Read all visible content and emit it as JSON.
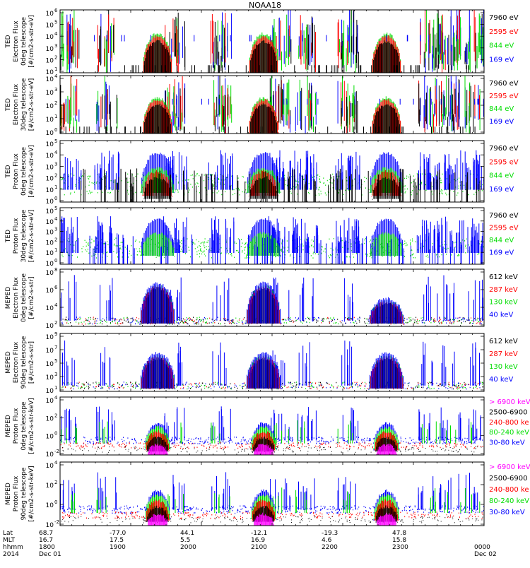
{
  "title": "NOAA18",
  "colors": {
    "black": "#000000",
    "red": "#ff0000",
    "green": "#00dd00",
    "blue": "#0000ff",
    "magenta": "#ff00ff"
  },
  "chart_data": [
    {
      "type": "scatter",
      "ylabel": [
        "TED",
        "Electron Flux",
        "0deg telescope",
        "[#/cm2-s-str-eV]"
      ],
      "yticks": [
        "10",
        "10",
        "10",
        "10",
        "10",
        "10"
      ],
      "yexp": [
        "1",
        "2",
        "3",
        "4",
        "5",
        "6"
      ],
      "legend": [
        {
          "label": "7960 eV",
          "color": "black"
        },
        {
          "label": "2595 eV",
          "color": "red"
        },
        {
          "label": "844 eV",
          "color": "green"
        },
        {
          "label": "169 eV",
          "color": "blue"
        }
      ],
      "style": "ted_e"
    },
    {
      "type": "scatter",
      "ylabel": [
        "TED",
        "Electron Flux",
        "30deg telescope",
        "[#/cm2-s-str-eV]"
      ],
      "yticks": [
        "10",
        "10",
        "10",
        "10",
        "10"
      ],
      "yexp": [
        "0",
        "1",
        "2",
        "3",
        "4"
      ],
      "legend": [
        {
          "label": "7960 eV",
          "color": "black"
        },
        {
          "label": "2595 eV",
          "color": "red"
        },
        {
          "label": "844 eV",
          "color": "green"
        },
        {
          "label": "169 eV",
          "color": "blue"
        }
      ],
      "style": "ted_e"
    },
    {
      "type": "scatter",
      "ylabel": [
        "TED",
        "Proton Flux",
        "0deg telescope",
        "[#/cm2-s-str-eV]"
      ],
      "yticks": [
        "10",
        "10",
        "10",
        "10",
        "10",
        "10"
      ],
      "yexp": [
        "0",
        "1",
        "2",
        "3",
        "4",
        "5"
      ],
      "legend": [
        {
          "label": "7960 eV",
          "color": "black"
        },
        {
          "label": "2595 eV",
          "color": "red"
        },
        {
          "label": "844 eV",
          "color": "green"
        },
        {
          "label": "169 eV",
          "color": "blue"
        }
      ],
      "style": "ted_p"
    },
    {
      "type": "scatter",
      "ylabel": [
        "TED",
        "Proton Flux",
        "30deg telescope",
        "[#/cm2-s-str-eV]"
      ],
      "yticks": [
        "10",
        "10",
        "10",
        "10",
        "10",
        "10"
      ],
      "yexp": [
        "0",
        "1",
        "2",
        "3",
        "4",
        "5"
      ],
      "legend": [
        {
          "label": "7960 eV",
          "color": "black"
        },
        {
          "label": "2595 eV",
          "color": "red"
        },
        {
          "label": "844 eV",
          "color": "green"
        },
        {
          "label": "169 eV",
          "color": "blue"
        }
      ],
      "style": "ted_p30"
    },
    {
      "type": "scatter",
      "ylabel": [
        "MEPED",
        "Electron Flux",
        "0deg telescope",
        "[#/cm2-s-str]"
      ],
      "yticks": [
        "10",
        "10",
        "10",
        "10"
      ],
      "yexp": [
        "2",
        "4",
        "6",
        "8"
      ],
      "legend": [
        {
          "label": "612 keV",
          "color": "black"
        },
        {
          "label": "287 keV",
          "color": "red"
        },
        {
          "label": "130 keV",
          "color": "green"
        },
        {
          "label": "40 keV",
          "color": "blue"
        }
      ],
      "style": "mep_e0"
    },
    {
      "type": "scatter",
      "ylabel": [
        "MEPED",
        "Electron Flux",
        "90deg telescope",
        "[#/cm2-s-str]"
      ],
      "yticks": [
        "10",
        "10",
        "10",
        "10",
        "10"
      ],
      "yexp": [
        "1",
        "3",
        "5",
        "7",
        "9"
      ],
      "legend": [
        {
          "label": "612 keV",
          "color": "black"
        },
        {
          "label": "287 keV",
          "color": "red"
        },
        {
          "label": "130 keV",
          "color": "green"
        },
        {
          "label": "40 keV",
          "color": "blue"
        }
      ],
      "style": "mep_e90"
    },
    {
      "type": "scatter",
      "ylabel": [
        "MEPED",
        "Proton Flux",
        "0deg telescope",
        "[#/cm2-s-str-keV]"
      ],
      "yticks": [
        "10",
        "10",
        "10",
        "10"
      ],
      "yexp": [
        "-2",
        "0",
        "2",
        "4"
      ],
      "legend": [
        {
          "label": "> 6900 keV",
          "color": "magenta"
        },
        {
          "label": "2500-6900",
          "color": "black"
        },
        {
          "label": "240-800 ke",
          "color": "red"
        },
        {
          "label": "80-240 keV",
          "color": "green"
        },
        {
          "label": "30-80 keV",
          "color": "blue"
        }
      ],
      "style": "mep_p"
    },
    {
      "type": "scatter",
      "ylabel": [
        "MEPED",
        "Proton Flux",
        "90deg telescope",
        "[#/cm2-s-str-keV]"
      ],
      "yticks": [
        "10",
        "10",
        "10",
        "10"
      ],
      "yexp": [
        "-2",
        "0",
        "2",
        "4"
      ],
      "legend": [
        {
          "label": "> 6900 keV",
          "color": "magenta"
        },
        {
          "label": "2500-6900",
          "color": "black"
        },
        {
          "label": "240-800 ke",
          "color": "red"
        },
        {
          "label": "80-240 keV",
          "color": "green"
        },
        {
          "label": "30-80 keV",
          "color": "blue"
        }
      ],
      "style": "mep_p"
    }
  ],
  "xaxis": {
    "row_labels": [
      "Lat",
      "MLT",
      "hhmm",
      "2014"
    ],
    "columns": [
      {
        "lat": "68.7",
        "mlt": "16.7",
        "hhmm": "1800",
        "date": "Dec 01"
      },
      {
        "lat": "-77.0",
        "mlt": "17.5",
        "hhmm": "1900",
        "date": ""
      },
      {
        "lat": "44.1",
        "mlt": "5.5",
        "hhmm": "2000",
        "date": ""
      },
      {
        "lat": "-12.1",
        "mlt": "16.9",
        "hhmm": "2100",
        "date": ""
      },
      {
        "lat": "-19.3",
        "mlt": "4.6",
        "hhmm": "2200",
        "date": ""
      },
      {
        "lat": "47.8",
        "mlt": "15.8",
        "hhmm": "2300",
        "date": ""
      },
      {
        "lat": "",
        "mlt": "",
        "hhmm": "0000",
        "date": "Dec 02"
      }
    ]
  }
}
